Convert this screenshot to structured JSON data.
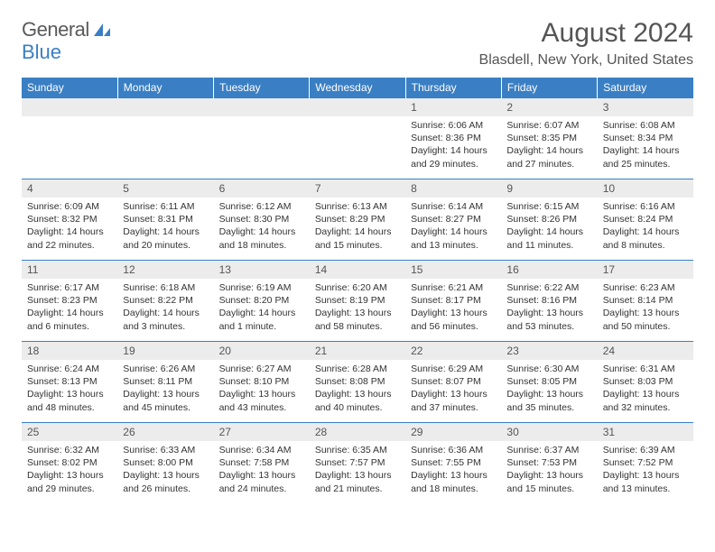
{
  "logo": {
    "text1": "General",
    "text2": "Blue",
    "text_color": "#5a5a5a",
    "accent_color": "#3a7fc4"
  },
  "title": "August 2024",
  "location": "Blasdell, New York, United States",
  "colors": {
    "header_bg": "#3a7fc4",
    "header_text": "#ffffff",
    "daybar_bg": "#ececec",
    "rule": "#3a7fc4"
  },
  "days_of_week": [
    "Sunday",
    "Monday",
    "Tuesday",
    "Wednesday",
    "Thursday",
    "Friday",
    "Saturday"
  ],
  "weeks": [
    [
      null,
      null,
      null,
      null,
      {
        "n": "1",
        "sr": "6:06 AM",
        "ss": "8:36 PM",
        "dl": "14 hours and 29 minutes."
      },
      {
        "n": "2",
        "sr": "6:07 AM",
        "ss": "8:35 PM",
        "dl": "14 hours and 27 minutes."
      },
      {
        "n": "3",
        "sr": "6:08 AM",
        "ss": "8:34 PM",
        "dl": "14 hours and 25 minutes."
      }
    ],
    [
      {
        "n": "4",
        "sr": "6:09 AM",
        "ss": "8:32 PM",
        "dl": "14 hours and 22 minutes."
      },
      {
        "n": "5",
        "sr": "6:11 AM",
        "ss": "8:31 PM",
        "dl": "14 hours and 20 minutes."
      },
      {
        "n": "6",
        "sr": "6:12 AM",
        "ss": "8:30 PM",
        "dl": "14 hours and 18 minutes."
      },
      {
        "n": "7",
        "sr": "6:13 AM",
        "ss": "8:29 PM",
        "dl": "14 hours and 15 minutes."
      },
      {
        "n": "8",
        "sr": "6:14 AM",
        "ss": "8:27 PM",
        "dl": "14 hours and 13 minutes."
      },
      {
        "n": "9",
        "sr": "6:15 AM",
        "ss": "8:26 PM",
        "dl": "14 hours and 11 minutes."
      },
      {
        "n": "10",
        "sr": "6:16 AM",
        "ss": "8:24 PM",
        "dl": "14 hours and 8 minutes."
      }
    ],
    [
      {
        "n": "11",
        "sr": "6:17 AM",
        "ss": "8:23 PM",
        "dl": "14 hours and 6 minutes."
      },
      {
        "n": "12",
        "sr": "6:18 AM",
        "ss": "8:22 PM",
        "dl": "14 hours and 3 minutes."
      },
      {
        "n": "13",
        "sr": "6:19 AM",
        "ss": "8:20 PM",
        "dl": "14 hours and 1 minute."
      },
      {
        "n": "14",
        "sr": "6:20 AM",
        "ss": "8:19 PM",
        "dl": "13 hours and 58 minutes."
      },
      {
        "n": "15",
        "sr": "6:21 AM",
        "ss": "8:17 PM",
        "dl": "13 hours and 56 minutes."
      },
      {
        "n": "16",
        "sr": "6:22 AM",
        "ss": "8:16 PM",
        "dl": "13 hours and 53 minutes."
      },
      {
        "n": "17",
        "sr": "6:23 AM",
        "ss": "8:14 PM",
        "dl": "13 hours and 50 minutes."
      }
    ],
    [
      {
        "n": "18",
        "sr": "6:24 AM",
        "ss": "8:13 PM",
        "dl": "13 hours and 48 minutes."
      },
      {
        "n": "19",
        "sr": "6:26 AM",
        "ss": "8:11 PM",
        "dl": "13 hours and 45 minutes."
      },
      {
        "n": "20",
        "sr": "6:27 AM",
        "ss": "8:10 PM",
        "dl": "13 hours and 43 minutes."
      },
      {
        "n": "21",
        "sr": "6:28 AM",
        "ss": "8:08 PM",
        "dl": "13 hours and 40 minutes."
      },
      {
        "n": "22",
        "sr": "6:29 AM",
        "ss": "8:07 PM",
        "dl": "13 hours and 37 minutes."
      },
      {
        "n": "23",
        "sr": "6:30 AM",
        "ss": "8:05 PM",
        "dl": "13 hours and 35 minutes."
      },
      {
        "n": "24",
        "sr": "6:31 AM",
        "ss": "8:03 PM",
        "dl": "13 hours and 32 minutes."
      }
    ],
    [
      {
        "n": "25",
        "sr": "6:32 AM",
        "ss": "8:02 PM",
        "dl": "13 hours and 29 minutes."
      },
      {
        "n": "26",
        "sr": "6:33 AM",
        "ss": "8:00 PM",
        "dl": "13 hours and 26 minutes."
      },
      {
        "n": "27",
        "sr": "6:34 AM",
        "ss": "7:58 PM",
        "dl": "13 hours and 24 minutes."
      },
      {
        "n": "28",
        "sr": "6:35 AM",
        "ss": "7:57 PM",
        "dl": "13 hours and 21 minutes."
      },
      {
        "n": "29",
        "sr": "6:36 AM",
        "ss": "7:55 PM",
        "dl": "13 hours and 18 minutes."
      },
      {
        "n": "30",
        "sr": "6:37 AM",
        "ss": "7:53 PM",
        "dl": "13 hours and 15 minutes."
      },
      {
        "n": "31",
        "sr": "6:39 AM",
        "ss": "7:52 PM",
        "dl": "13 hours and 13 minutes."
      }
    ]
  ],
  "labels": {
    "sunrise": "Sunrise: ",
    "sunset": "Sunset: ",
    "daylight": "Daylight: "
  }
}
